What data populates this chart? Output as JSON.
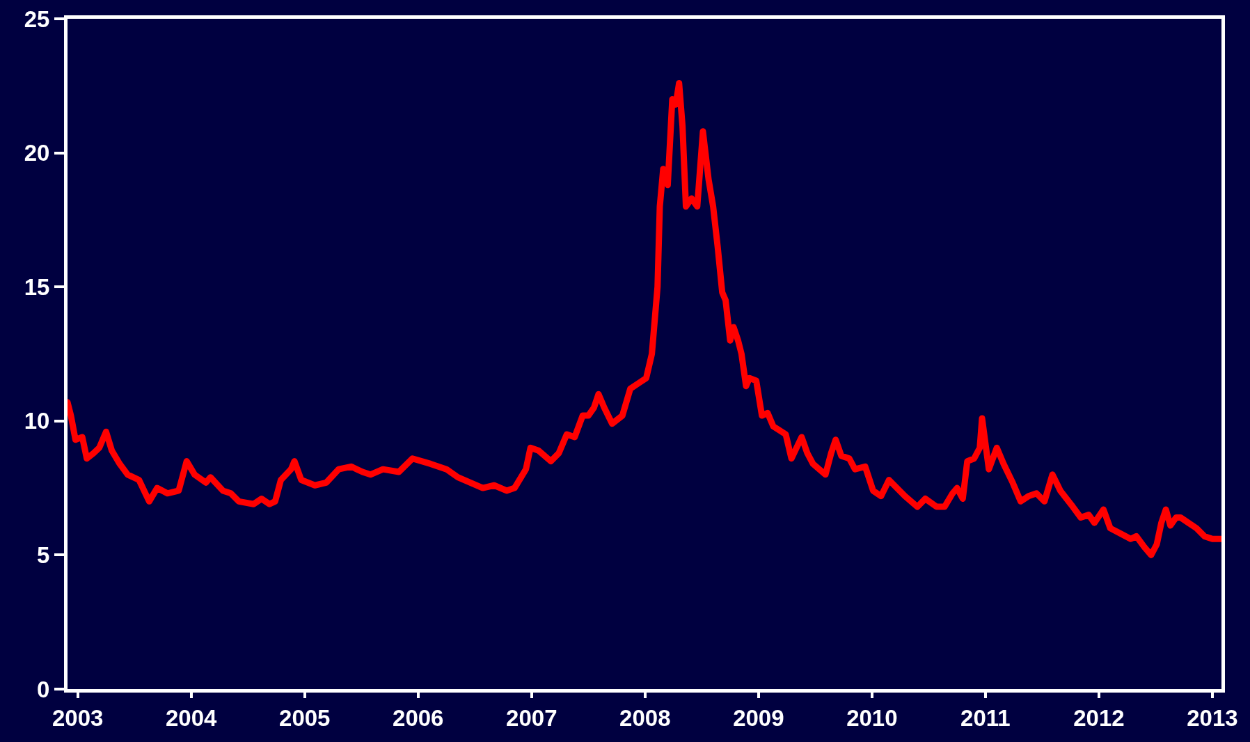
{
  "chart_data": {
    "type": "line",
    "xlim": [
      2002.91,
      2013.08
    ],
    "xticks": [
      2003,
      2004,
      2005,
      2006,
      2007,
      2008,
      2009,
      2010,
      2011,
      2012,
      2013
    ],
    "ylim": [
      0,
      25
    ],
    "yticks": [
      0,
      5,
      10,
      15,
      20,
      25
    ],
    "grid": false,
    "legend": false,
    "line_style": "solid",
    "series": [
      {
        "color": "#ff0000",
        "x": [
          2002.91,
          2002.94,
          2002.98,
          2003.04,
          2003.08,
          2003.14,
          2003.19,
          2003.25,
          2003.3,
          2003.37,
          2003.44,
          2003.54,
          2003.63,
          2003.7,
          2003.79,
          2003.89,
          2003.96,
          2004.03,
          2004.13,
          2004.17,
          2004.28,
          2004.35,
          2004.42,
          2004.55,
          2004.62,
          2004.69,
          2004.74,
          2004.79,
          2004.88,
          2004.91,
          2004.97,
          2005.09,
          2005.19,
          2005.3,
          2005.41,
          2005.51,
          2005.58,
          2005.69,
          2005.83,
          2005.95,
          2006.11,
          2006.25,
          2006.35,
          2006.46,
          2006.57,
          2006.67,
          2006.78,
          2006.85,
          2006.95,
          2006.99,
          2007.06,
          2007.17,
          2007.24,
          2007.31,
          2007.38,
          2007.45,
          2007.5,
          2007.55,
          2007.59,
          2007.64,
          2007.71,
          2007.8,
          2007.87,
          2007.94,
          2008.01,
          2008.06,
          2008.11,
          2008.13,
          2008.16,
          2008.2,
          2008.24,
          2008.27,
          2008.3,
          2008.33,
          2008.36,
          2008.41,
          2008.46,
          2008.51,
          2008.56,
          2008.6,
          2008.64,
          2008.68,
          2008.71,
          2008.75,
          2008.78,
          2008.82,
          2008.85,
          2008.89,
          2008.92,
          2008.98,
          2009.03,
          2009.08,
          2009.13,
          2009.24,
          2009.29,
          2009.38,
          2009.43,
          2009.48,
          2009.59,
          2009.64,
          2009.68,
          2009.73,
          2009.8,
          2009.85,
          2009.94,
          2010.01,
          2010.08,
          2010.15,
          2010.22,
          2010.29,
          2010.4,
          2010.47,
          2010.57,
          2010.64,
          2010.71,
          2010.75,
          2010.8,
          2010.84,
          2010.9,
          2010.95,
          2010.97,
          2011.03,
          2011.1,
          2011.16,
          2011.24,
          2011.31,
          2011.38,
          2011.45,
          2011.52,
          2011.59,
          2011.66,
          2011.77,
          2011.84,
          2011.91,
          2011.96,
          2012.04,
          2012.1,
          2012.19,
          2012.28,
          2012.33,
          2012.4,
          2012.46,
          2012.51,
          2012.55,
          2012.59,
          2012.63,
          2012.68,
          2012.72,
          2012.79,
          2012.86,
          2012.93,
          2013.0,
          2013.08
        ],
        "values": [
          10.7,
          10.2,
          9.3,
          9.4,
          8.6,
          8.8,
          9.0,
          9.6,
          8.9,
          8.4,
          8.0,
          7.8,
          7.0,
          7.5,
          7.3,
          7.4,
          8.5,
          8.0,
          7.7,
          7.9,
          7.4,
          7.3,
          7.0,
          6.9,
          7.1,
          6.9,
          7.0,
          7.8,
          8.2,
          8.5,
          7.8,
          7.6,
          7.7,
          8.2,
          8.3,
          8.1,
          8.0,
          8.2,
          8.1,
          8.6,
          8.4,
          8.2,
          7.9,
          7.7,
          7.5,
          7.6,
          7.4,
          7.5,
          8.2,
          9.0,
          8.9,
          8.5,
          8.8,
          9.5,
          9.4,
          10.2,
          10.2,
          10.5,
          11.0,
          10.5,
          9.9,
          10.2,
          11.2,
          11.4,
          11.6,
          12.5,
          15.0,
          18.0,
          19.4,
          18.8,
          22.0,
          21.8,
          22.6,
          21.0,
          18.0,
          18.3,
          18.0,
          20.8,
          19.0,
          18.0,
          16.5,
          14.8,
          14.5,
          13.0,
          13.5,
          13.0,
          12.5,
          11.3,
          11.6,
          11.5,
          10.2,
          10.3,
          9.8,
          9.5,
          8.6,
          9.4,
          8.8,
          8.4,
          8.0,
          8.8,
          9.3,
          8.7,
          8.6,
          8.2,
          8.3,
          7.4,
          7.2,
          7.8,
          7.5,
          7.2,
          6.8,
          7.1,
          6.8,
          6.8,
          7.3,
          7.5,
          7.1,
          8.5,
          8.6,
          9.0,
          10.1,
          8.2,
          9.0,
          8.4,
          7.7,
          7.0,
          7.2,
          7.3,
          7.0,
          8.0,
          7.4,
          6.8,
          6.4,
          6.5,
          6.2,
          6.7,
          6.0,
          5.8,
          5.6,
          5.7,
          5.3,
          5.0,
          5.4,
          6.2,
          6.7,
          6.1,
          6.4,
          6.4,
          6.2,
          6.0,
          5.7,
          5.6,
          5.6
        ]
      }
    ]
  }
}
